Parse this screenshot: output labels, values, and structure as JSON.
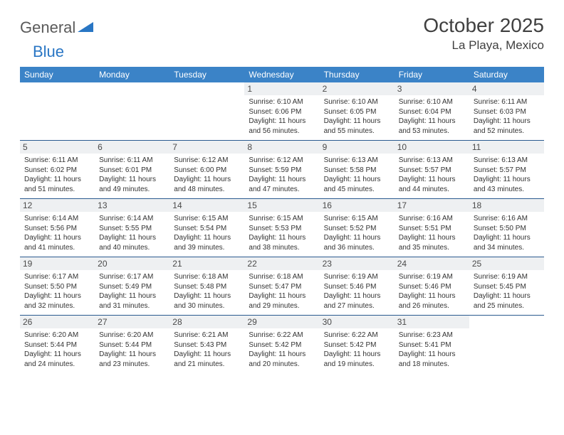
{
  "brand": {
    "general": "General",
    "blue": "Blue"
  },
  "title": "October 2025",
  "location": "La Playa, Mexico",
  "colors": {
    "header_bg": "#3b83c7",
    "header_text": "#ffffff",
    "rule": "#2a5a8f",
    "daynum_bg": "#eef0f2",
    "text": "#333333",
    "brand_gray": "#5a5a5a",
    "brand_blue": "#2976c4"
  },
  "weekdays": [
    "Sunday",
    "Monday",
    "Tuesday",
    "Wednesday",
    "Thursday",
    "Friday",
    "Saturday"
  ],
  "weeks": [
    [
      {
        "n": "",
        "sr": "",
        "ss": "",
        "dl": ""
      },
      {
        "n": "",
        "sr": "",
        "ss": "",
        "dl": ""
      },
      {
        "n": "",
        "sr": "",
        "ss": "",
        "dl": ""
      },
      {
        "n": "1",
        "sr": "Sunrise: 6:10 AM",
        "ss": "Sunset: 6:06 PM",
        "dl": "Daylight: 11 hours and 56 minutes."
      },
      {
        "n": "2",
        "sr": "Sunrise: 6:10 AM",
        "ss": "Sunset: 6:05 PM",
        "dl": "Daylight: 11 hours and 55 minutes."
      },
      {
        "n": "3",
        "sr": "Sunrise: 6:10 AM",
        "ss": "Sunset: 6:04 PM",
        "dl": "Daylight: 11 hours and 53 minutes."
      },
      {
        "n": "4",
        "sr": "Sunrise: 6:11 AM",
        "ss": "Sunset: 6:03 PM",
        "dl": "Daylight: 11 hours and 52 minutes."
      }
    ],
    [
      {
        "n": "5",
        "sr": "Sunrise: 6:11 AM",
        "ss": "Sunset: 6:02 PM",
        "dl": "Daylight: 11 hours and 51 minutes."
      },
      {
        "n": "6",
        "sr": "Sunrise: 6:11 AM",
        "ss": "Sunset: 6:01 PM",
        "dl": "Daylight: 11 hours and 49 minutes."
      },
      {
        "n": "7",
        "sr": "Sunrise: 6:12 AM",
        "ss": "Sunset: 6:00 PM",
        "dl": "Daylight: 11 hours and 48 minutes."
      },
      {
        "n": "8",
        "sr": "Sunrise: 6:12 AM",
        "ss": "Sunset: 5:59 PM",
        "dl": "Daylight: 11 hours and 47 minutes."
      },
      {
        "n": "9",
        "sr": "Sunrise: 6:13 AM",
        "ss": "Sunset: 5:58 PM",
        "dl": "Daylight: 11 hours and 45 minutes."
      },
      {
        "n": "10",
        "sr": "Sunrise: 6:13 AM",
        "ss": "Sunset: 5:57 PM",
        "dl": "Daylight: 11 hours and 44 minutes."
      },
      {
        "n": "11",
        "sr": "Sunrise: 6:13 AM",
        "ss": "Sunset: 5:57 PM",
        "dl": "Daylight: 11 hours and 43 minutes."
      }
    ],
    [
      {
        "n": "12",
        "sr": "Sunrise: 6:14 AM",
        "ss": "Sunset: 5:56 PM",
        "dl": "Daylight: 11 hours and 41 minutes."
      },
      {
        "n": "13",
        "sr": "Sunrise: 6:14 AM",
        "ss": "Sunset: 5:55 PM",
        "dl": "Daylight: 11 hours and 40 minutes."
      },
      {
        "n": "14",
        "sr": "Sunrise: 6:15 AM",
        "ss": "Sunset: 5:54 PM",
        "dl": "Daylight: 11 hours and 39 minutes."
      },
      {
        "n": "15",
        "sr": "Sunrise: 6:15 AM",
        "ss": "Sunset: 5:53 PM",
        "dl": "Daylight: 11 hours and 38 minutes."
      },
      {
        "n": "16",
        "sr": "Sunrise: 6:15 AM",
        "ss": "Sunset: 5:52 PM",
        "dl": "Daylight: 11 hours and 36 minutes."
      },
      {
        "n": "17",
        "sr": "Sunrise: 6:16 AM",
        "ss": "Sunset: 5:51 PM",
        "dl": "Daylight: 11 hours and 35 minutes."
      },
      {
        "n": "18",
        "sr": "Sunrise: 6:16 AM",
        "ss": "Sunset: 5:50 PM",
        "dl": "Daylight: 11 hours and 34 minutes."
      }
    ],
    [
      {
        "n": "19",
        "sr": "Sunrise: 6:17 AM",
        "ss": "Sunset: 5:50 PM",
        "dl": "Daylight: 11 hours and 32 minutes."
      },
      {
        "n": "20",
        "sr": "Sunrise: 6:17 AM",
        "ss": "Sunset: 5:49 PM",
        "dl": "Daylight: 11 hours and 31 minutes."
      },
      {
        "n": "21",
        "sr": "Sunrise: 6:18 AM",
        "ss": "Sunset: 5:48 PM",
        "dl": "Daylight: 11 hours and 30 minutes."
      },
      {
        "n": "22",
        "sr": "Sunrise: 6:18 AM",
        "ss": "Sunset: 5:47 PM",
        "dl": "Daylight: 11 hours and 29 minutes."
      },
      {
        "n": "23",
        "sr": "Sunrise: 6:19 AM",
        "ss": "Sunset: 5:46 PM",
        "dl": "Daylight: 11 hours and 27 minutes."
      },
      {
        "n": "24",
        "sr": "Sunrise: 6:19 AM",
        "ss": "Sunset: 5:46 PM",
        "dl": "Daylight: 11 hours and 26 minutes."
      },
      {
        "n": "25",
        "sr": "Sunrise: 6:19 AM",
        "ss": "Sunset: 5:45 PM",
        "dl": "Daylight: 11 hours and 25 minutes."
      }
    ],
    [
      {
        "n": "26",
        "sr": "Sunrise: 6:20 AM",
        "ss": "Sunset: 5:44 PM",
        "dl": "Daylight: 11 hours and 24 minutes."
      },
      {
        "n": "27",
        "sr": "Sunrise: 6:20 AM",
        "ss": "Sunset: 5:44 PM",
        "dl": "Daylight: 11 hours and 23 minutes."
      },
      {
        "n": "28",
        "sr": "Sunrise: 6:21 AM",
        "ss": "Sunset: 5:43 PM",
        "dl": "Daylight: 11 hours and 21 minutes."
      },
      {
        "n": "29",
        "sr": "Sunrise: 6:22 AM",
        "ss": "Sunset: 5:42 PM",
        "dl": "Daylight: 11 hours and 20 minutes."
      },
      {
        "n": "30",
        "sr": "Sunrise: 6:22 AM",
        "ss": "Sunset: 5:42 PM",
        "dl": "Daylight: 11 hours and 19 minutes."
      },
      {
        "n": "31",
        "sr": "Sunrise: 6:23 AM",
        "ss": "Sunset: 5:41 PM",
        "dl": "Daylight: 11 hours and 18 minutes."
      },
      {
        "n": "",
        "sr": "",
        "ss": "",
        "dl": ""
      }
    ]
  ]
}
